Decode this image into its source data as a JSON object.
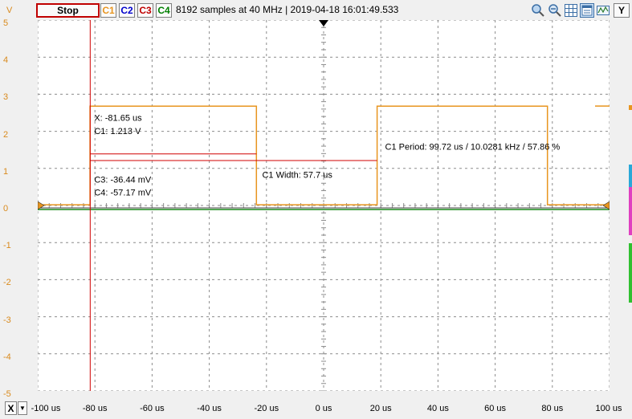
{
  "toolbar": {
    "stop_label": "Stop",
    "channels": [
      {
        "label": "C1",
        "color": "#e8951f",
        "active": true
      },
      {
        "label": "C2",
        "color": "#0000cc",
        "active": true
      },
      {
        "label": "C3",
        "color": "#c00000",
        "active": true
      },
      {
        "label": "C4",
        "color": "#008000",
        "active": true
      }
    ],
    "status": "8192 samples at 40 MHz | 2019-04-18 16:01:49.533",
    "right_icons": [
      "zoom-icon",
      "zoom-fit-icon",
      "grid-icon",
      "panel-icon",
      "y-axis-button"
    ],
    "y_button_label": "Y"
  },
  "y_axis": {
    "unit": "V",
    "labels": [
      "5",
      "4",
      "3",
      "2",
      "1",
      "0",
      "-1",
      "-2",
      "-3",
      "-4",
      "-5"
    ]
  },
  "x_axis": {
    "button_label": "X",
    "labels": [
      "-100 us",
      "-80 us",
      "-60 us",
      "-40 us",
      "-20 us",
      "0 us",
      "20 us",
      "40 us",
      "60 us",
      "80 us",
      "100 us"
    ]
  },
  "cursor": {
    "x_readout": "X: -81.65 us",
    "c1_readout": "C1: 1.213 V",
    "c3_readout": "C3: -36.44 mV",
    "c4_readout": "C4: -57.17 mV"
  },
  "measurements": {
    "width_label": "C1 Width: 57.7 us",
    "period_label": "C1 Period: 99.72 us / 10.0281 kHz / 57.86 %"
  },
  "colors": {
    "c1": "#e8951f",
    "c3": "#d00000",
    "c4": "#1a8a1a",
    "grid": "#8c8c8c"
  }
}
